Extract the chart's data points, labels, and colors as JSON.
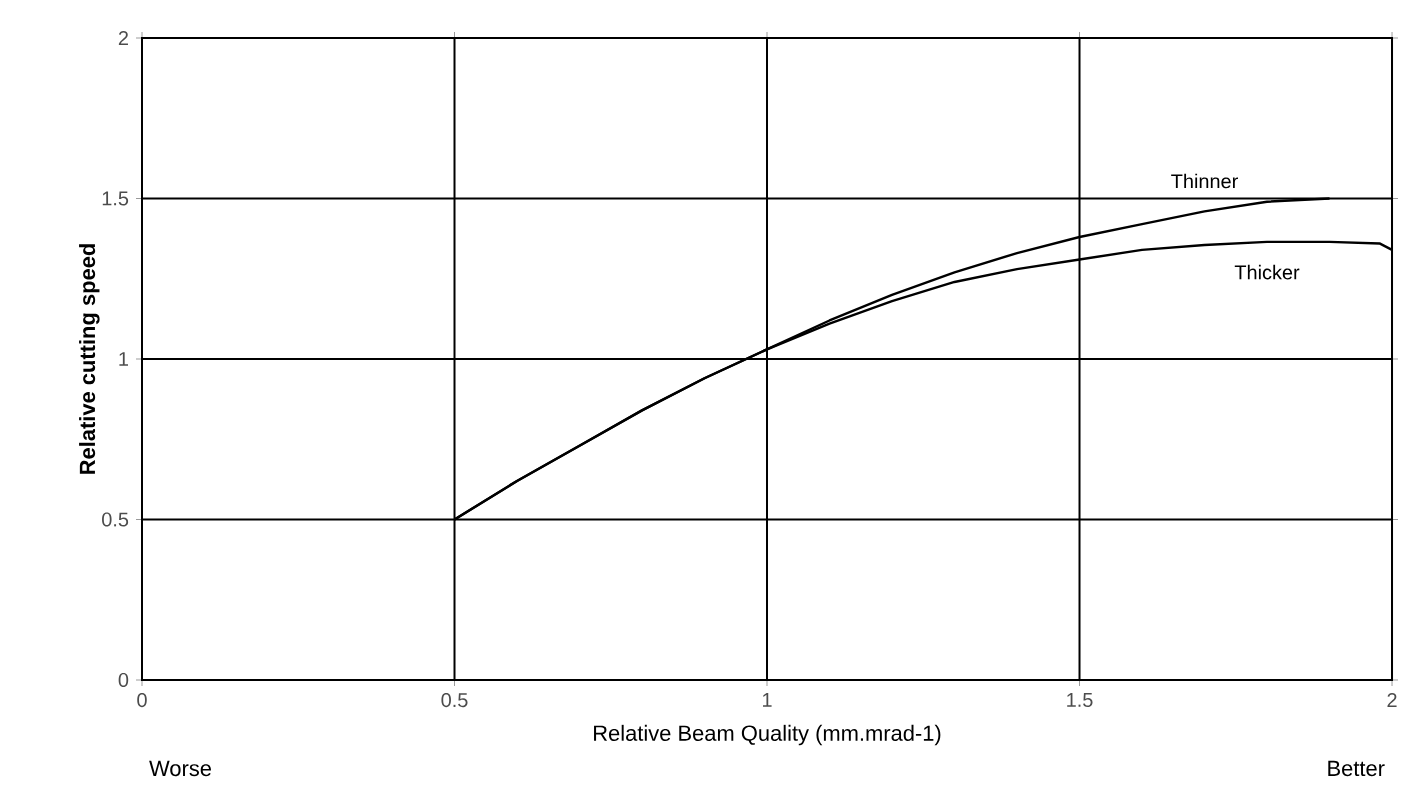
{
  "chart_data": {
    "type": "line",
    "xlabel": "Relative Beam Quality (mm.mrad-1)",
    "ylabel": "Relative cutting speed",
    "xlim": [
      0,
      2
    ],
    "ylim": [
      0,
      2
    ],
    "xticks": [
      0,
      0.5,
      1,
      1.5,
      2
    ],
    "yticks": [
      0,
      0.5,
      1,
      1.5,
      {
        "value": 2,
        "label": "2"
      }
    ],
    "grid": true,
    "marker": "none",
    "line_style": "solid",
    "annotations": [
      "Worse",
      "Better"
    ],
    "series": [
      {
        "name": "Thinner",
        "color": "#000000",
        "x": [
          0.5,
          0.6,
          0.7,
          0.8,
          0.9,
          1.0,
          1.1,
          1.2,
          1.3,
          1.4,
          1.5,
          1.6,
          1.7,
          1.8,
          1.9
        ],
        "values": [
          0.5,
          0.62,
          0.73,
          0.84,
          0.94,
          1.03,
          1.12,
          1.2,
          1.27,
          1.33,
          1.38,
          1.42,
          1.46,
          1.49,
          1.5
        ]
      },
      {
        "name": "Thicker",
        "color": "#000000",
        "x": [
          0.5,
          0.6,
          0.7,
          0.8,
          0.9,
          1.0,
          1.1,
          1.2,
          1.3,
          1.4,
          1.5,
          1.6,
          1.7,
          1.8,
          1.9,
          1.98,
          2.0
        ],
        "values": [
          0.5,
          0.62,
          0.73,
          0.84,
          0.94,
          1.03,
          1.11,
          1.18,
          1.24,
          1.28,
          1.31,
          1.34,
          1.355,
          1.365,
          1.365,
          1.36,
          1.34
        ]
      }
    ]
  }
}
